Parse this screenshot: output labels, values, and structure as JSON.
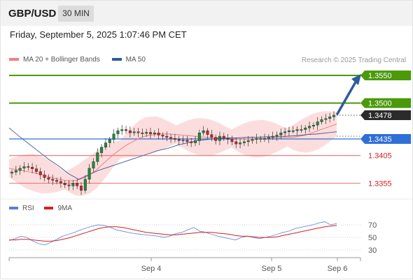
{
  "header": {
    "symbol": "GBP/USD",
    "timeframe": "30 MIN"
  },
  "datetime": "Friday, September 5, 2025 1:07:46 PM CET",
  "legend": [
    {
      "label": "MA 20 + Bollinger Bands",
      "color": "#f08080"
    },
    {
      "label": "MA 50",
      "color": "#2e5c9a"
    }
  ],
  "credit": "Research © 2025 Trading Central",
  "rsi_legend": [
    {
      "label": "RSI",
      "color": "#5b7fd6"
    },
    {
      "label": "9MA",
      "color": "#d62020"
    }
  ],
  "colors": {
    "bull_candle": "#1f8a3a",
    "bear_candle": "#c8282e",
    "target_green": "#4a9a0a",
    "pivot_blue": "#2f6fd6",
    "support_red": "#e06060",
    "current_dark": "#2b2b2b",
    "arrow": "#2e5c9a",
    "bb_fill": "#fbd2d2"
  },
  "chart_data": [
    {
      "type": "candlestick",
      "title": "GBP/USD 30 MIN",
      "x_ticks": [
        "Sep 4",
        "Sep 5",
        "Sep 6"
      ],
      "ylim": [
        1.332,
        1.3575
      ],
      "levels": [
        {
          "label": "1.3550",
          "value": 1.355,
          "kind": "target"
        },
        {
          "label": "1.3500",
          "value": 1.35,
          "kind": "target"
        },
        {
          "label": "1.3478",
          "value": 1.3478,
          "kind": "current"
        },
        {
          "label": "1.3435",
          "value": 1.3435,
          "kind": "pivot"
        },
        {
          "label": "1.3405",
          "value": 1.3405,
          "kind": "support"
        },
        {
          "label": "1.3355",
          "value": 1.3355,
          "kind": "support"
        }
      ],
      "close_series": [
        1.3375,
        1.3378,
        1.3382,
        1.3385,
        1.3384,
        1.3381,
        1.3376,
        1.337,
        1.3365,
        1.3362,
        1.336,
        1.3358,
        1.3355,
        1.3352,
        1.335,
        1.3355,
        1.335,
        1.3342,
        1.3362,
        1.3382,
        1.3394,
        1.341,
        1.342,
        1.3428,
        1.3434,
        1.3444,
        1.345,
        1.3452,
        1.345,
        1.3446,
        1.3448,
        1.3446,
        1.3445,
        1.3447,
        1.3444,
        1.3446,
        1.3442,
        1.344,
        1.3438,
        1.3436,
        1.3434,
        1.3432,
        1.3433,
        1.343,
        1.3428,
        1.3432,
        1.3446,
        1.345,
        1.3443,
        1.3438,
        1.3432,
        1.344,
        1.3436,
        1.3434,
        1.343,
        1.3426,
        1.3428,
        1.343,
        1.3432,
        1.3434,
        1.3436,
        1.3436,
        1.3436,
        1.3438,
        1.344,
        1.3442,
        1.3446,
        1.3448,
        1.345,
        1.345,
        1.3452,
        1.3452,
        1.3455,
        1.3458,
        1.346,
        1.3466,
        1.347,
        1.3472,
        1.3475,
        1.3478
      ],
      "ma20_series": [
        1.3382,
        1.338,
        1.3378,
        1.3376,
        1.3374,
        1.3371,
        1.3368,
        1.3365,
        1.3362,
        1.336,
        1.3359,
        1.336,
        1.3364,
        1.337,
        1.3378,
        1.3388,
        1.3398,
        1.3408,
        1.3416,
        1.3424,
        1.343,
        1.3436,
        1.344,
        1.3442,
        1.3444,
        1.3444,
        1.3444,
        1.3443,
        1.3442,
        1.3441,
        1.344,
        1.3439,
        1.3438,
        1.3437,
        1.3437,
        1.3436,
        1.3436,
        1.3435,
        1.3435,
        1.3435,
        1.3435,
        1.3436,
        1.3436,
        1.3437,
        1.3437,
        1.3438,
        1.3438,
        1.344,
        1.3442,
        1.3446,
        1.345,
        1.3454,
        1.3458,
        1.3462
      ],
      "ma50_series": [
        1.3455,
        1.344,
        1.3426,
        1.3412,
        1.3398,
        1.3386,
        1.3372,
        1.3362,
        1.337,
        1.3378,
        1.3384,
        1.339,
        1.3396,
        1.3402,
        1.3408,
        1.3414,
        1.3418,
        1.3424,
        1.3428,
        1.3432,
        1.3434,
        1.3436,
        1.3437,
        1.3437,
        1.3438,
        1.3438,
        1.3439,
        1.3439,
        1.344,
        1.3441,
        1.3443,
        1.3444,
        1.3446,
        1.3448
      ],
      "annotation": "projected path toward 1.3550"
    },
    {
      "type": "line",
      "title": "RSI",
      "y_ticks": [
        70,
        50,
        30
      ],
      "ylim": [
        20,
        80
      ],
      "series": [
        {
          "name": "RSI",
          "values": [
            45,
            48,
            52,
            50,
            44,
            40,
            38,
            42,
            47,
            52,
            55,
            58,
            62,
            65,
            68,
            70,
            69,
            66,
            62,
            60,
            58,
            56,
            55,
            54,
            53,
            52,
            50,
            52,
            56,
            58,
            62,
            66,
            60,
            58,
            55,
            52,
            50,
            48,
            46,
            50,
            52,
            50,
            48,
            50,
            52,
            55,
            58,
            60,
            64,
            66,
            68,
            70,
            73,
            75,
            70,
            72
          ]
        },
        {
          "name": "9MA",
          "values": [
            46,
            46,
            47,
            47,
            46,
            45,
            44,
            44,
            45,
            47,
            49,
            52,
            55,
            58,
            61,
            64,
            66,
            67,
            67,
            66,
            64,
            62,
            60,
            58,
            57,
            56,
            55,
            54,
            54,
            55,
            56,
            57,
            58,
            58,
            58,
            57,
            56,
            55,
            53,
            52,
            52,
            51,
            50,
            50,
            50,
            51,
            53,
            55,
            57,
            59,
            61,
            63,
            65,
            67,
            68,
            69
          ]
        }
      ]
    }
  ]
}
